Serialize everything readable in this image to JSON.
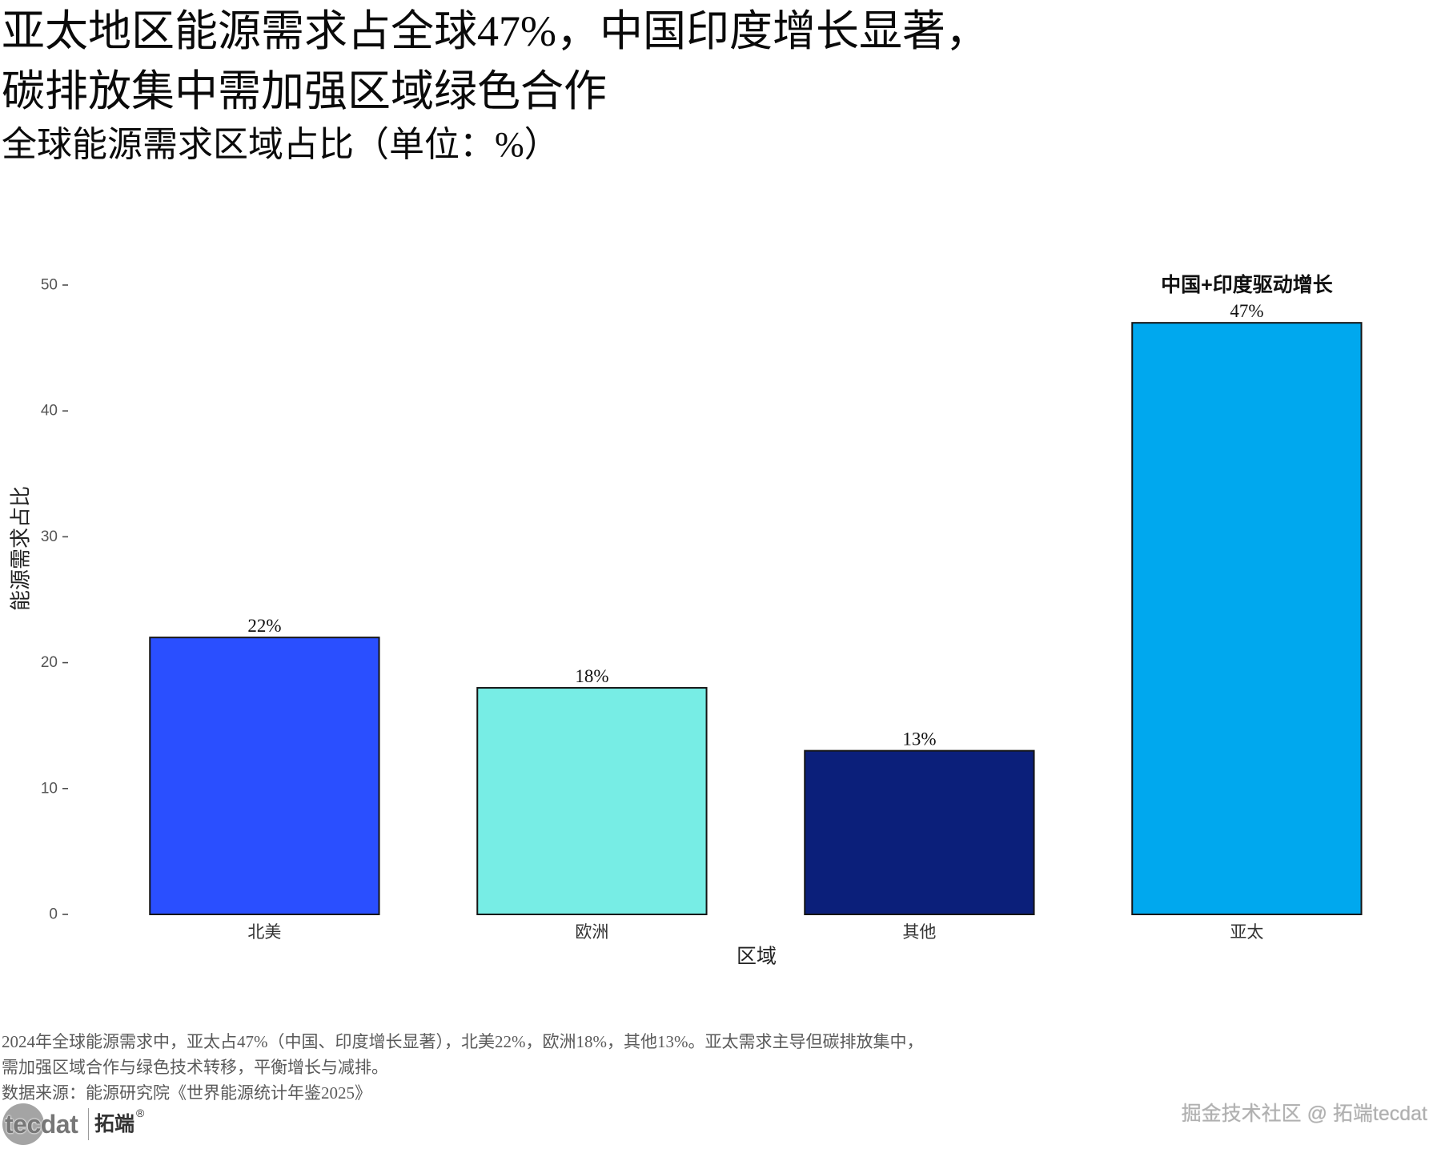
{
  "chart_data": {
    "type": "bar",
    "title": "亚太地区能源需求占全球47%，中国印度增长显著，\n碳排放集中需加强区域绿色合作",
    "subtitle": "全球能源需求区域占比（单位：%）",
    "xlabel": "区域",
    "ylabel": "能源需求占比",
    "categories": [
      "北美",
      "欧洲",
      "其他",
      "亚太"
    ],
    "values": [
      22,
      18,
      13,
      47
    ],
    "data_labels": [
      "22%",
      "18%",
      "13%",
      "47%"
    ],
    "bar_colors": [
      "#2a4fff",
      "#77ede5",
      "#0b1f7a",
      "#00a8ee"
    ],
    "bar_outline_color": "#151515",
    "ylim": [
      0,
      50
    ],
    "yticks": [
      0,
      10,
      20,
      30,
      40,
      50
    ],
    "grid": false,
    "legend": "none",
    "annotations": [
      {
        "x": "亚太",
        "y": 50,
        "text": "中国+印度驱动增长"
      }
    ]
  },
  "footer": {
    "caption": "2024年全球能源需求中，亚太占47%（中国、印度增长显著），北美22%，欧洲18%，其他13%。亚太需求主导但碳排放集中，\n需加强区域合作与绿色技术转移，平衡增长与减排。",
    "source": "数据来源：能源研究院《世界能源统计年鉴2025》"
  },
  "branding": {
    "logo_mark": "tecdat",
    "logo_name": "拓端",
    "logo_registered": "®",
    "watermark": "掘金技术社区 @ 拓端tecdat"
  }
}
